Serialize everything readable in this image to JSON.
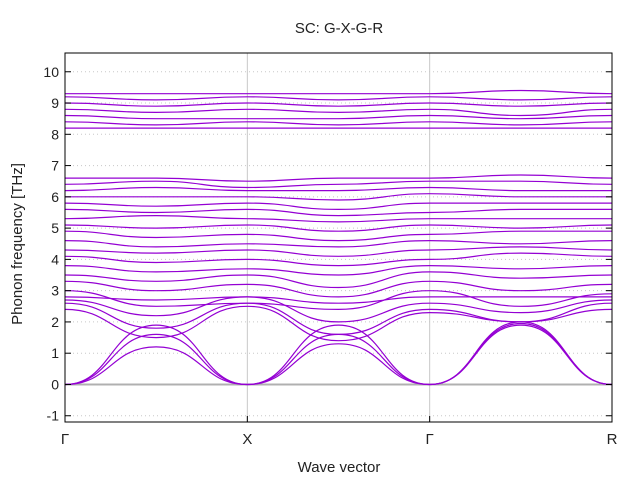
{
  "chart_data": {
    "type": "line",
    "title": "SC: G-X-G-R",
    "xlabel": "Wave vector",
    "ylabel": "Phonon frequency [THz]",
    "xlim": [
      0,
      3
    ],
    "ylim": [
      -1.2,
      10.6
    ],
    "yticks": [
      -1,
      0,
      1,
      2,
      3,
      4,
      5,
      6,
      7,
      8,
      9,
      10
    ],
    "xticks": [
      {
        "label": "Γ",
        "x": 0
      },
      {
        "label": "X",
        "x": 1
      },
      {
        "label": "Γ",
        "x": 2
      },
      {
        "label": "R",
        "x": 3
      }
    ],
    "grid": true,
    "zero_line": true,
    "line_color": "#9400d3",
    "zero_line_color": "#b0b0b0",
    "series": [
      {
        "values": [
          [
            0,
            0.0
          ],
          [
            0.5,
            1.9
          ],
          [
            1,
            0.0
          ],
          [
            1.5,
            1.9
          ],
          [
            2,
            0.0
          ],
          [
            2.5,
            2.0
          ],
          [
            3,
            0.0
          ]
        ]
      },
      {
        "values": [
          [
            0,
            0.0
          ],
          [
            0.5,
            1.6
          ],
          [
            1,
            0.0
          ],
          [
            1.5,
            1.6
          ],
          [
            2,
            0.0
          ],
          [
            2.5,
            1.95
          ],
          [
            3,
            0.0
          ]
        ]
      },
      {
        "values": [
          [
            0,
            0.0
          ],
          [
            0.5,
            1.2
          ],
          [
            1,
            0.0
          ],
          [
            1.5,
            1.3
          ],
          [
            2,
            0.0
          ],
          [
            2.5,
            1.9
          ],
          [
            3,
            0.0
          ]
        ]
      },
      {
        "values": [
          [
            0,
            2.4
          ],
          [
            0.5,
            1.5
          ],
          [
            1,
            2.5
          ],
          [
            1.5,
            1.4
          ],
          [
            2,
            2.3
          ],
          [
            2.5,
            2.0
          ],
          [
            3,
            2.4
          ]
        ]
      },
      {
        "values": [
          [
            0,
            2.6
          ],
          [
            0.5,
            1.8
          ],
          [
            1,
            2.6
          ],
          [
            1.5,
            1.6
          ],
          [
            2,
            2.4
          ],
          [
            2.5,
            2.0
          ],
          [
            3,
            2.6
          ]
        ]
      },
      {
        "values": [
          [
            0,
            2.7
          ],
          [
            0.5,
            2.2
          ],
          [
            1,
            2.8
          ],
          [
            1.5,
            2.0
          ],
          [
            2,
            2.6
          ],
          [
            2.5,
            2.3
          ],
          [
            3,
            2.7
          ]
        ]
      },
      {
        "values": [
          [
            0,
            2.8
          ],
          [
            0.5,
            2.7
          ],
          [
            1,
            2.8
          ],
          [
            1.5,
            2.6
          ],
          [
            2,
            2.8
          ],
          [
            2.5,
            2.8
          ],
          [
            3,
            2.8
          ]
        ]
      },
      {
        "values": [
          [
            0,
            3.0
          ],
          [
            0.5,
            2.5
          ],
          [
            1,
            2.6
          ],
          [
            1.5,
            2.4
          ],
          [
            2,
            3.0
          ],
          [
            2.5,
            2.5
          ],
          [
            3,
            2.9
          ]
        ]
      },
      {
        "values": [
          [
            0,
            3.3
          ],
          [
            0.5,
            3.0
          ],
          [
            1,
            3.2
          ],
          [
            1.5,
            2.8
          ],
          [
            2,
            3.3
          ],
          [
            2.5,
            3.0
          ],
          [
            3,
            3.2
          ]
        ]
      },
      {
        "values": [
          [
            0,
            3.5
          ],
          [
            0.5,
            3.3
          ],
          [
            1,
            3.5
          ],
          [
            1.5,
            3.1
          ],
          [
            2,
            3.6
          ],
          [
            2.5,
            3.4
          ],
          [
            3,
            3.5
          ]
        ]
      },
      {
        "values": [
          [
            0,
            3.8
          ],
          [
            0.5,
            3.6
          ],
          [
            1,
            3.7
          ],
          [
            1.5,
            3.5
          ],
          [
            2,
            3.8
          ],
          [
            2.5,
            3.7
          ],
          [
            3,
            3.8
          ]
        ]
      },
      {
        "values": [
          [
            0,
            4.1
          ],
          [
            0.5,
            3.9
          ],
          [
            1,
            4.0
          ],
          [
            1.5,
            3.8
          ],
          [
            2,
            4.0
          ],
          [
            2.5,
            4.2
          ],
          [
            3,
            4.1
          ]
        ]
      },
      {
        "values": [
          [
            0,
            4.3
          ],
          [
            0.5,
            4.2
          ],
          [
            1,
            4.3
          ],
          [
            1.5,
            4.1
          ],
          [
            2,
            4.3
          ],
          [
            2.5,
            4.4
          ],
          [
            3,
            4.3
          ]
        ]
      },
      {
        "values": [
          [
            0,
            4.6
          ],
          [
            0.5,
            4.4
          ],
          [
            1,
            4.5
          ],
          [
            1.5,
            4.4
          ],
          [
            2,
            4.6
          ],
          [
            2.5,
            4.5
          ],
          [
            3,
            4.6
          ]
        ]
      },
      {
        "values": [
          [
            0,
            4.9
          ],
          [
            0.5,
            4.7
          ],
          [
            1,
            4.8
          ],
          [
            1.5,
            4.6
          ],
          [
            2,
            4.8
          ],
          [
            2.5,
            4.9
          ],
          [
            3,
            4.9
          ]
        ]
      },
      {
        "values": [
          [
            0,
            5.1
          ],
          [
            0.5,
            5.0
          ],
          [
            1,
            5.1
          ],
          [
            1.5,
            4.9
          ],
          [
            2,
            5.1
          ],
          [
            2.5,
            5.0
          ],
          [
            3,
            5.1
          ]
        ]
      },
      {
        "values": [
          [
            0,
            5.3
          ],
          [
            0.5,
            5.4
          ],
          [
            1,
            5.3
          ],
          [
            1.5,
            5.2
          ],
          [
            2,
            5.3
          ],
          [
            2.5,
            5.3
          ],
          [
            3,
            5.3
          ]
        ]
      },
      {
        "values": [
          [
            0,
            5.6
          ],
          [
            0.5,
            5.5
          ],
          [
            1,
            5.6
          ],
          [
            1.5,
            5.4
          ],
          [
            2,
            5.5
          ],
          [
            2.5,
            5.6
          ],
          [
            3,
            5.6
          ]
        ]
      },
      {
        "values": [
          [
            0,
            5.8
          ],
          [
            0.5,
            5.7
          ],
          [
            1,
            5.8
          ],
          [
            1.5,
            5.6
          ],
          [
            2,
            5.8
          ],
          [
            2.5,
            5.8
          ],
          [
            3,
            5.8
          ]
        ]
      },
      {
        "values": [
          [
            0,
            6.0
          ],
          [
            0.5,
            6.0
          ],
          [
            1,
            6.0
          ],
          [
            1.5,
            5.9
          ],
          [
            2,
            6.1
          ],
          [
            2.5,
            6.0
          ],
          [
            3,
            6.0
          ]
        ]
      },
      {
        "values": [
          [
            0,
            6.2
          ],
          [
            0.5,
            6.3
          ],
          [
            1,
            6.2
          ],
          [
            1.5,
            6.2
          ],
          [
            2,
            6.3
          ],
          [
            2.5,
            6.2
          ],
          [
            3,
            6.2
          ]
        ]
      },
      {
        "values": [
          [
            0,
            6.4
          ],
          [
            0.5,
            6.5
          ],
          [
            1,
            6.3
          ],
          [
            1.5,
            6.4
          ],
          [
            2,
            6.5
          ],
          [
            2.5,
            6.5
          ],
          [
            3,
            6.4
          ]
        ]
      },
      {
        "values": [
          [
            0,
            6.6
          ],
          [
            0.5,
            6.6
          ],
          [
            1,
            6.5
          ],
          [
            1.5,
            6.6
          ],
          [
            2,
            6.6
          ],
          [
            2.5,
            6.7
          ],
          [
            3,
            6.6
          ]
        ]
      },
      {
        "values": [
          [
            0,
            8.2
          ],
          [
            0.5,
            8.2
          ],
          [
            1,
            8.2
          ],
          [
            1.5,
            8.2
          ],
          [
            2,
            8.2
          ],
          [
            2.5,
            8.2
          ],
          [
            3,
            8.2
          ]
        ]
      },
      {
        "values": [
          [
            0,
            8.4
          ],
          [
            0.5,
            8.3
          ],
          [
            1,
            8.4
          ],
          [
            1.5,
            8.3
          ],
          [
            2,
            8.4
          ],
          [
            2.5,
            8.3
          ],
          [
            3,
            8.4
          ]
        ]
      },
      {
        "values": [
          [
            0,
            8.6
          ],
          [
            0.5,
            8.5
          ],
          [
            1,
            8.5
          ],
          [
            1.5,
            8.5
          ],
          [
            2,
            8.6
          ],
          [
            2.5,
            8.5
          ],
          [
            3,
            8.6
          ]
        ]
      },
      {
        "values": [
          [
            0,
            8.8
          ],
          [
            0.5,
            8.7
          ],
          [
            1,
            8.8
          ],
          [
            1.5,
            8.7
          ],
          [
            2,
            8.8
          ],
          [
            2.5,
            8.6
          ],
          [
            3,
            8.8
          ]
        ]
      },
      {
        "values": [
          [
            0,
            9.0
          ],
          [
            0.5,
            8.9
          ],
          [
            1,
            9.0
          ],
          [
            1.5,
            8.9
          ],
          [
            2,
            9.0
          ],
          [
            2.5,
            8.9
          ],
          [
            3,
            9.0
          ]
        ]
      },
      {
        "values": [
          [
            0,
            9.2
          ],
          [
            0.5,
            9.1
          ],
          [
            1,
            9.2
          ],
          [
            1.5,
            9.1
          ],
          [
            2,
            9.2
          ],
          [
            2.5,
            9.1
          ],
          [
            3,
            9.2
          ]
        ]
      },
      {
        "values": [
          [
            0,
            9.3
          ],
          [
            0.5,
            9.3
          ],
          [
            1,
            9.3
          ],
          [
            1.5,
            9.3
          ],
          [
            2,
            9.3
          ],
          [
            2.5,
            9.4
          ],
          [
            3,
            9.3
          ]
        ]
      }
    ]
  }
}
